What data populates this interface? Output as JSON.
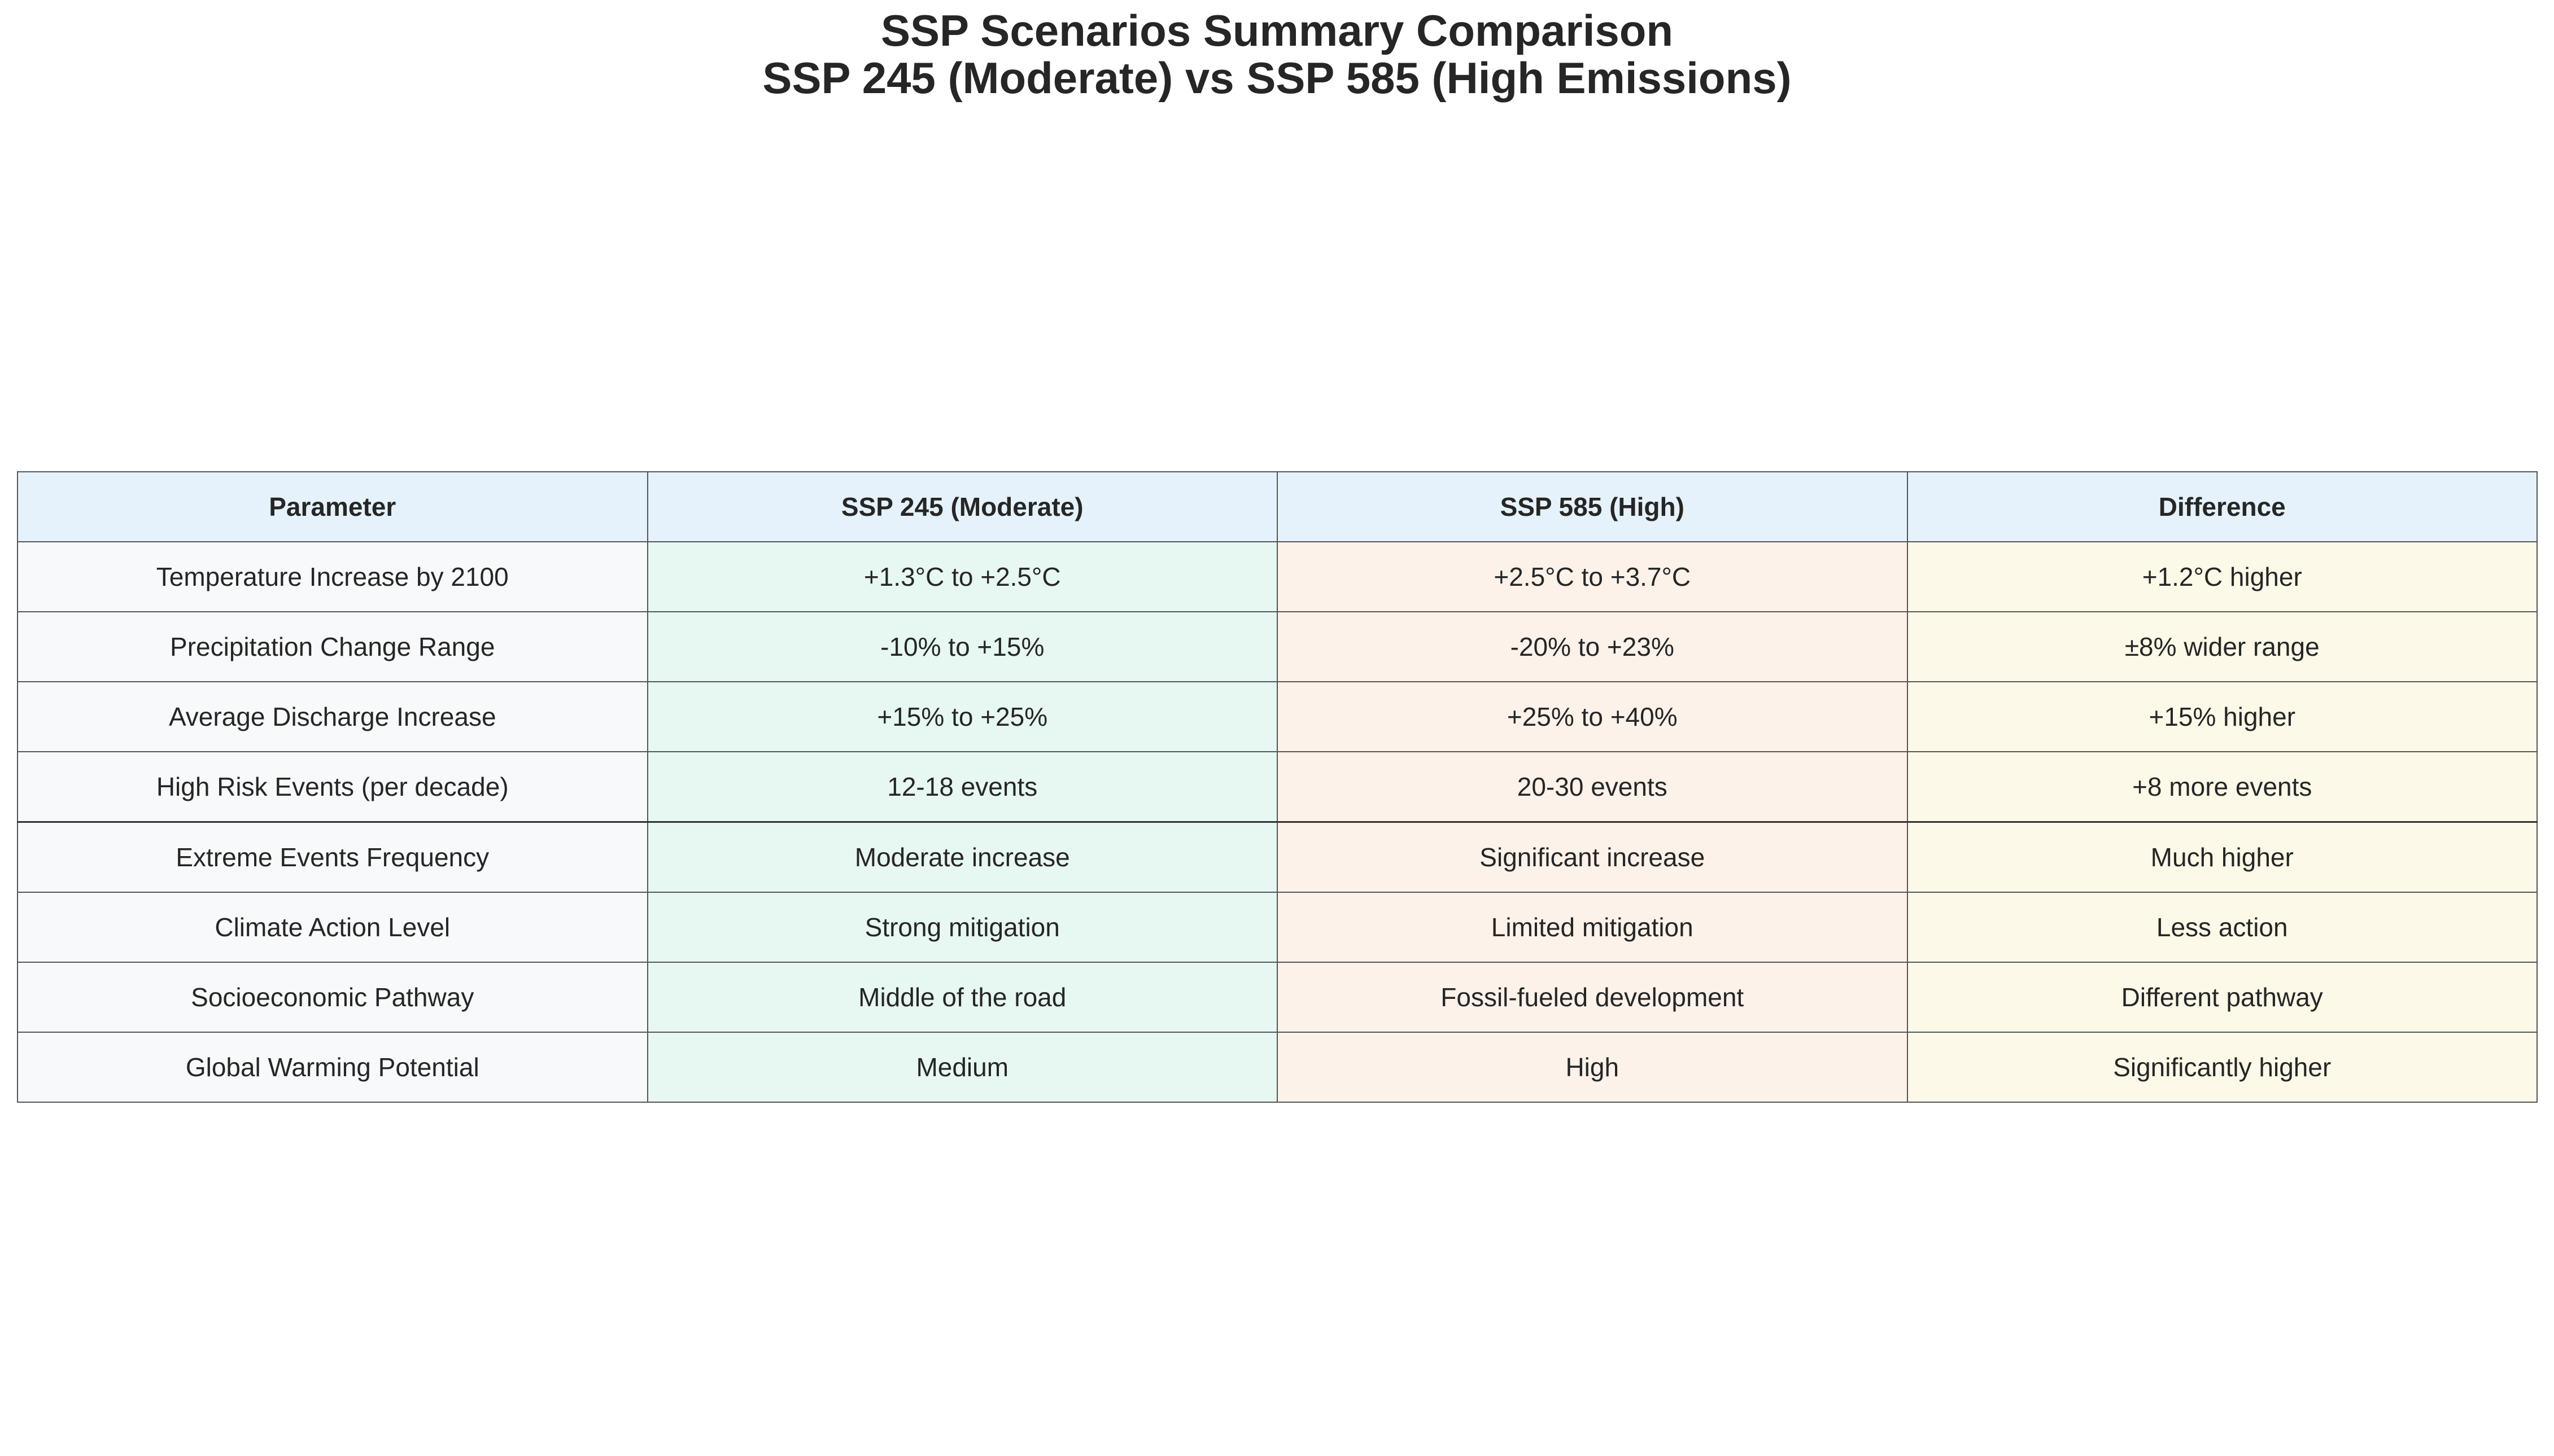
{
  "title": {
    "line1": "SSP Scenarios Summary Comparison",
    "line2": "SSP 245 (Moderate) vs SSP 585 (High Emissions)"
  },
  "chart_data": {
    "type": "table",
    "columns": [
      "Parameter",
      "SSP 245 (Moderate)",
      "SSP 585 (High)",
      "Difference"
    ],
    "rows": [
      [
        "Temperature Increase by 2100",
        "+1.3°C to +2.5°C",
        "+2.5°C to +3.7°C",
        "+1.2°C higher"
      ],
      [
        "Precipitation Change Range",
        "-10% to +15%",
        "-20% to +23%",
        "±8% wider range"
      ],
      [
        "Average Discharge Increase",
        "+15% to +25%",
        "+25% to +40%",
        "+15% higher"
      ],
      [
        "High Risk Events (per decade)",
        "12-18 events",
        "20-30 events",
        "+8 more events"
      ],
      [
        "Extreme Events Frequency",
        "Moderate increase",
        "Significant increase",
        "Much higher"
      ],
      [
        "Climate Action Level",
        "Strong mitigation",
        "Limited mitigation",
        "Less action"
      ],
      [
        "Socioeconomic Pathway",
        "Middle of the road",
        "Fossil-fueled development",
        "Different pathway"
      ],
      [
        "Global Warming Potential",
        "Medium",
        "High",
        "Significantly higher"
      ]
    ],
    "colors": {
      "header": "#e5f2fb",
      "parameter_column": "#f8f9fa",
      "ssp245_column": "#e7f7f2",
      "ssp585_column": "#fcf2ea",
      "difference_column": "#fdf9e8"
    }
  }
}
